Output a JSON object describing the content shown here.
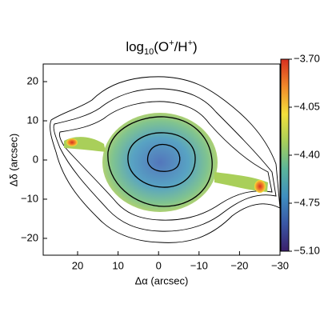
{
  "chart_data": {
    "type": "image",
    "title": [
      {
        "text": "log"
      },
      {
        "text": "10",
        "style": "sub"
      },
      {
        "text": "(O"
      },
      {
        "text": "+",
        "style": "sup"
      },
      {
        "text": "/H"
      },
      {
        "text": "+",
        "style": "sup"
      },
      {
        "text": ")"
      }
    ],
    "x_label": "Δα (arcsec)",
    "y_label": "Δδ (arcsec)",
    "xlim": [
      28.5,
      -30
    ],
    "ylim": [
      -24.3,
      24.5
    ],
    "xticks": [
      20,
      10,
      0,
      {
        "value": -10,
        "label": "−10"
      },
      {
        "value": -20,
        "label": "−20"
      },
      {
        "value": -30,
        "label": "−30"
      }
    ],
    "yticks": [
      {
        "value": -20,
        "label": "−20"
      },
      {
        "value": -10,
        "label": "−10"
      },
      0,
      10,
      20
    ],
    "colorbar": {
      "lim": [
        -5.1,
        -3.7
      ],
      "ticks": [
        {
          "value": -3.7,
          "label": "−3.70"
        },
        {
          "value": -4.05,
          "label": "−4.05"
        },
        {
          "value": -4.4,
          "label": "−4.40"
        },
        {
          "value": -4.75,
          "label": "−4.75"
        },
        {
          "value": -5.1,
          "label": "−5.10"
        }
      ],
      "colormap": [
        "#3b1f6b",
        "#3a57a5",
        "#3f8fc0",
        "#5bb59a",
        "#a9cf5a",
        "#f3e03b",
        "#f28a2a",
        "#d7301f"
      ]
    }
  }
}
